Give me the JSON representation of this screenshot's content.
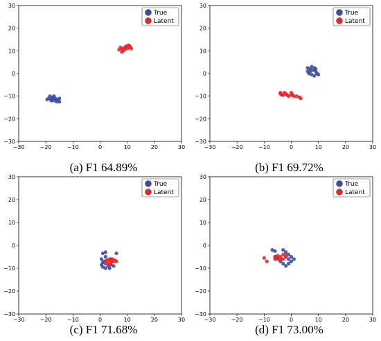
{
  "colors": {
    "true": "#3a4fa3",
    "latent": "#e8262b"
  },
  "chart_data": [
    {
      "type": "scatter",
      "caption": "(a) F1 64.89%",
      "xlim": [
        -30,
        30
      ],
      "ylim": [
        -30,
        30
      ],
      "xticks": [
        -30,
        -20,
        -10,
        0,
        10,
        20,
        30
      ],
      "yticks": [
        -30,
        -20,
        -10,
        0,
        10,
        20,
        30
      ],
      "legend_position": "top-right",
      "series": [
        {
          "name": "True",
          "color": "#3a4fa3",
          "points": [
            [
              -19,
              -11
            ],
            [
              -18.5,
              -10
            ],
            [
              -18,
              -11.5
            ],
            [
              -17.5,
              -10.5
            ],
            [
              -17,
              -12
            ],
            [
              -16.5,
              -11
            ],
            [
              -16,
              -11.5
            ],
            [
              -15.5,
              -12
            ],
            [
              -15,
              -11
            ],
            [
              -18,
              -12
            ],
            [
              -17,
              -10
            ],
            [
              -16,
              -12.5
            ],
            [
              -19.5,
              -11.5
            ],
            [
              -15,
              -12.5
            ],
            [
              -17.5,
              -11
            ]
          ]
        },
        {
          "name": "Latent",
          "color": "#e8262b",
          "points": [
            [
              7,
              10.5
            ],
            [
              8,
              11
            ],
            [
              8.5,
              10
            ],
            [
              9,
              11.5
            ],
            [
              9.5,
              12
            ],
            [
              10,
              11
            ],
            [
              10.5,
              12.5
            ],
            [
              11,
              11.5
            ],
            [
              11.5,
              11
            ],
            [
              8,
              9.5
            ],
            [
              9,
              10.5
            ],
            [
              10,
              12
            ],
            [
              7.5,
              11.5
            ],
            [
              11,
              12
            ]
          ]
        }
      ]
    },
    {
      "type": "scatter",
      "caption": "(b) F1 69.72%",
      "xlim": [
        -30,
        30
      ],
      "ylim": [
        -30,
        30
      ],
      "xticks": [
        -30,
        -20,
        -10,
        0,
        10,
        20,
        30
      ],
      "yticks": [
        -30,
        -20,
        -10,
        0,
        10,
        20,
        30
      ],
      "legend_position": "top-right",
      "series": [
        {
          "name": "True",
          "color": "#3a4fa3",
          "points": [
            [
              6,
              2.5
            ],
            [
              7,
              2
            ],
            [
              7.5,
              3
            ],
            [
              8,
              1.5
            ],
            [
              8.5,
              2.5
            ],
            [
              9,
              1
            ],
            [
              9.5,
              0
            ],
            [
              10,
              -0.5
            ],
            [
              6.5,
              0
            ],
            [
              7.5,
              -0.5
            ],
            [
              8.5,
              -1
            ],
            [
              6,
              1
            ],
            [
              9,
              2
            ],
            [
              7,
              1
            ]
          ]
        },
        {
          "name": "Latent",
          "color": "#e8262b",
          "points": [
            [
              -4,
              -9
            ],
            [
              -3,
              -9.5
            ],
            [
              -2,
              -9
            ],
            [
              -1,
              -10
            ],
            [
              0,
              -8.5
            ],
            [
              0.5,
              -9.5
            ],
            [
              1,
              -10
            ],
            [
              2,
              -10
            ],
            [
              3,
              -10.5
            ],
            [
              3.5,
              -11
            ],
            [
              -3.5,
              -9.5
            ],
            [
              -2.5,
              -8.5
            ],
            [
              -1.5,
              -9.5
            ],
            [
              0,
              -9.5
            ],
            [
              -4,
              -8.5
            ]
          ]
        }
      ]
    },
    {
      "type": "scatter",
      "caption": "(c) F1 71.68%",
      "xlim": [
        -30,
        30
      ],
      "ylim": [
        -30,
        30
      ],
      "xticks": [
        -30,
        -20,
        -10,
        0,
        10,
        20,
        30
      ],
      "yticks": [
        -30,
        -20,
        -10,
        0,
        10,
        20,
        30
      ],
      "legend_position": "top-right",
      "series": [
        {
          "name": "True",
          "color": "#3a4fa3",
          "points": [
            [
              1,
              -3.5
            ],
            [
              2,
              -3
            ],
            [
              0.5,
              -6
            ],
            [
              1.5,
              -7
            ],
            [
              0.5,
              -8.5
            ],
            [
              1,
              -9.5
            ],
            [
              2,
              -10
            ],
            [
              3,
              -9
            ],
            [
              3.5,
              -10
            ],
            [
              4,
              -8.5
            ],
            [
              5,
              -9
            ],
            [
              6,
              -3.5
            ],
            [
              2,
              -5
            ],
            [
              1,
              -7.5
            ],
            [
              4,
              -6
            ]
          ]
        },
        {
          "name": "Latent",
          "color": "#e8262b",
          "points": [
            [
              2,
              -7
            ],
            [
              2.5,
              -6.5
            ],
            [
              3,
              -8
            ],
            [
              3.5,
              -6
            ],
            [
              4,
              -7
            ],
            [
              4.5,
              -6
            ],
            [
              5,
              -7
            ],
            [
              6,
              -7
            ],
            [
              2,
              -8
            ],
            [
              3,
              -6.5
            ],
            [
              4,
              -8
            ],
            [
              5.5,
              -6.5
            ]
          ]
        }
      ]
    },
    {
      "type": "scatter",
      "caption": "(d) F1 73.00%",
      "xlim": [
        -30,
        30
      ],
      "ylim": [
        -30,
        30
      ],
      "xticks": [
        -30,
        -20,
        -10,
        0,
        10,
        20,
        30
      ],
      "yticks": [
        -30,
        -20,
        -10,
        0,
        10,
        20,
        30
      ],
      "legend_position": "top-right",
      "series": [
        {
          "name": "True",
          "color": "#3a4fa3",
          "points": [
            [
              -7,
              -2
            ],
            [
              -6,
              -2.5
            ],
            [
              -3,
              -2
            ],
            [
              -2,
              -3
            ],
            [
              -1,
              -4
            ],
            [
              0,
              -5
            ],
            [
              1,
              -6
            ],
            [
              0,
              -7
            ],
            [
              -1,
              -8
            ],
            [
              -3,
              -8
            ],
            [
              -4,
              -7
            ],
            [
              -5,
              -6
            ],
            [
              -6,
              -5
            ],
            [
              -2,
              -9
            ],
            [
              -1,
              -6
            ]
          ]
        },
        {
          "name": "Latent",
          "color": "#e8262b",
          "points": [
            [
              -10,
              -5.5
            ],
            [
              -9,
              -7
            ],
            [
              -6,
              -5
            ],
            [
              -5,
              -4.5
            ],
            [
              -4,
              -5
            ],
            [
              -3,
              -4
            ],
            [
              -3,
              -6
            ],
            [
              -2,
              -5
            ],
            [
              -4,
              -6
            ],
            [
              -5,
              -5.5
            ],
            [
              -2,
              -4.5
            ],
            [
              -6,
              -6
            ]
          ]
        }
      ]
    }
  ]
}
